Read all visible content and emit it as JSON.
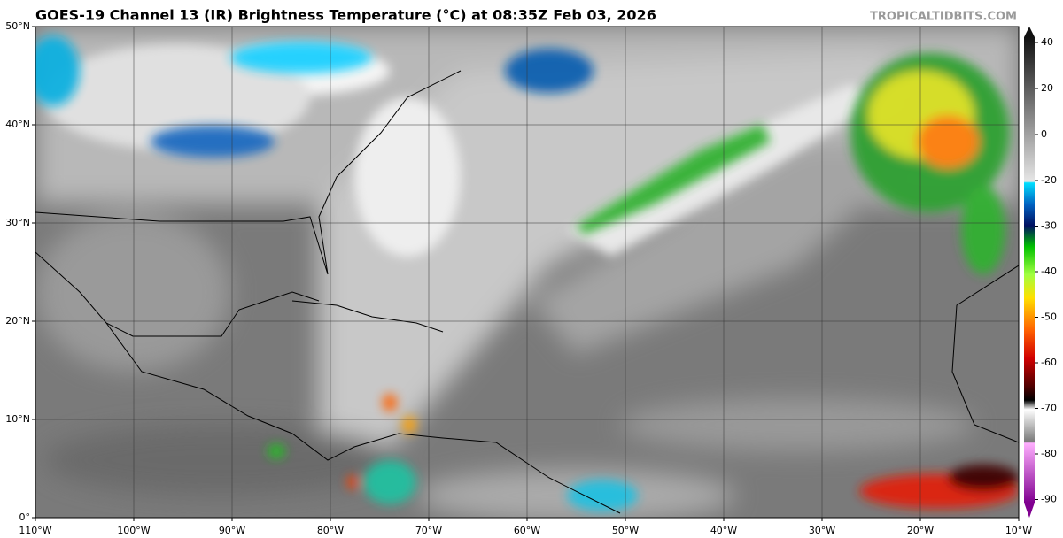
{
  "header": {
    "title": "GOES-19 Channel 13 (IR) Brightness Temperature (°C) at 08:35Z Feb 03, 2026",
    "source": "TROPICALTIDBITS.COM"
  },
  "map": {
    "latitude_labels": [
      "50°N",
      "40°N",
      "30°N",
      "20°N",
      "10°N",
      "0°"
    ],
    "longitude_labels": [
      "110°W",
      "100°W",
      "90°W",
      "80°W",
      "70°W",
      "60°W",
      "50°W",
      "40°W",
      "30°W",
      "20°W",
      "10°W"
    ]
  },
  "colorbar": {
    "ticks": [
      40,
      20,
      0,
      -20,
      -30,
      -40,
      -50,
      -60,
      -70,
      -80,
      -90
    ]
  }
}
